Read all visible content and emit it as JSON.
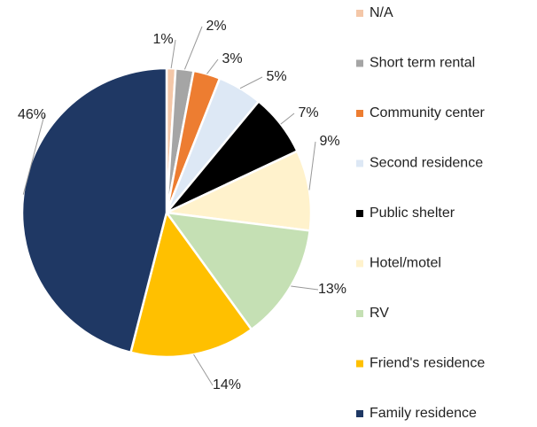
{
  "chart_data": {
    "type": "pie",
    "categories": [
      "N/A",
      "Short term rental",
      "Community center",
      "Second residence",
      "Public shelter",
      "Hotel/motel",
      "RV",
      "Friend's residence",
      "Family residence"
    ],
    "values": [
      1,
      2,
      3,
      5,
      7,
      9,
      13,
      14,
      46
    ],
    "value_labels": [
      "1%",
      "2%",
      "3%",
      "5%",
      "7%",
      "9%",
      "13%",
      "14%",
      "46%"
    ],
    "colors": [
      "#f4c7a8",
      "#a5a5a5",
      "#ed7d31",
      "#dde8f5",
      "#000000",
      "#fff2cc",
      "#c5e0b4",
      "#ffc000",
      "#1f3864"
    ],
    "legend": "right"
  }
}
